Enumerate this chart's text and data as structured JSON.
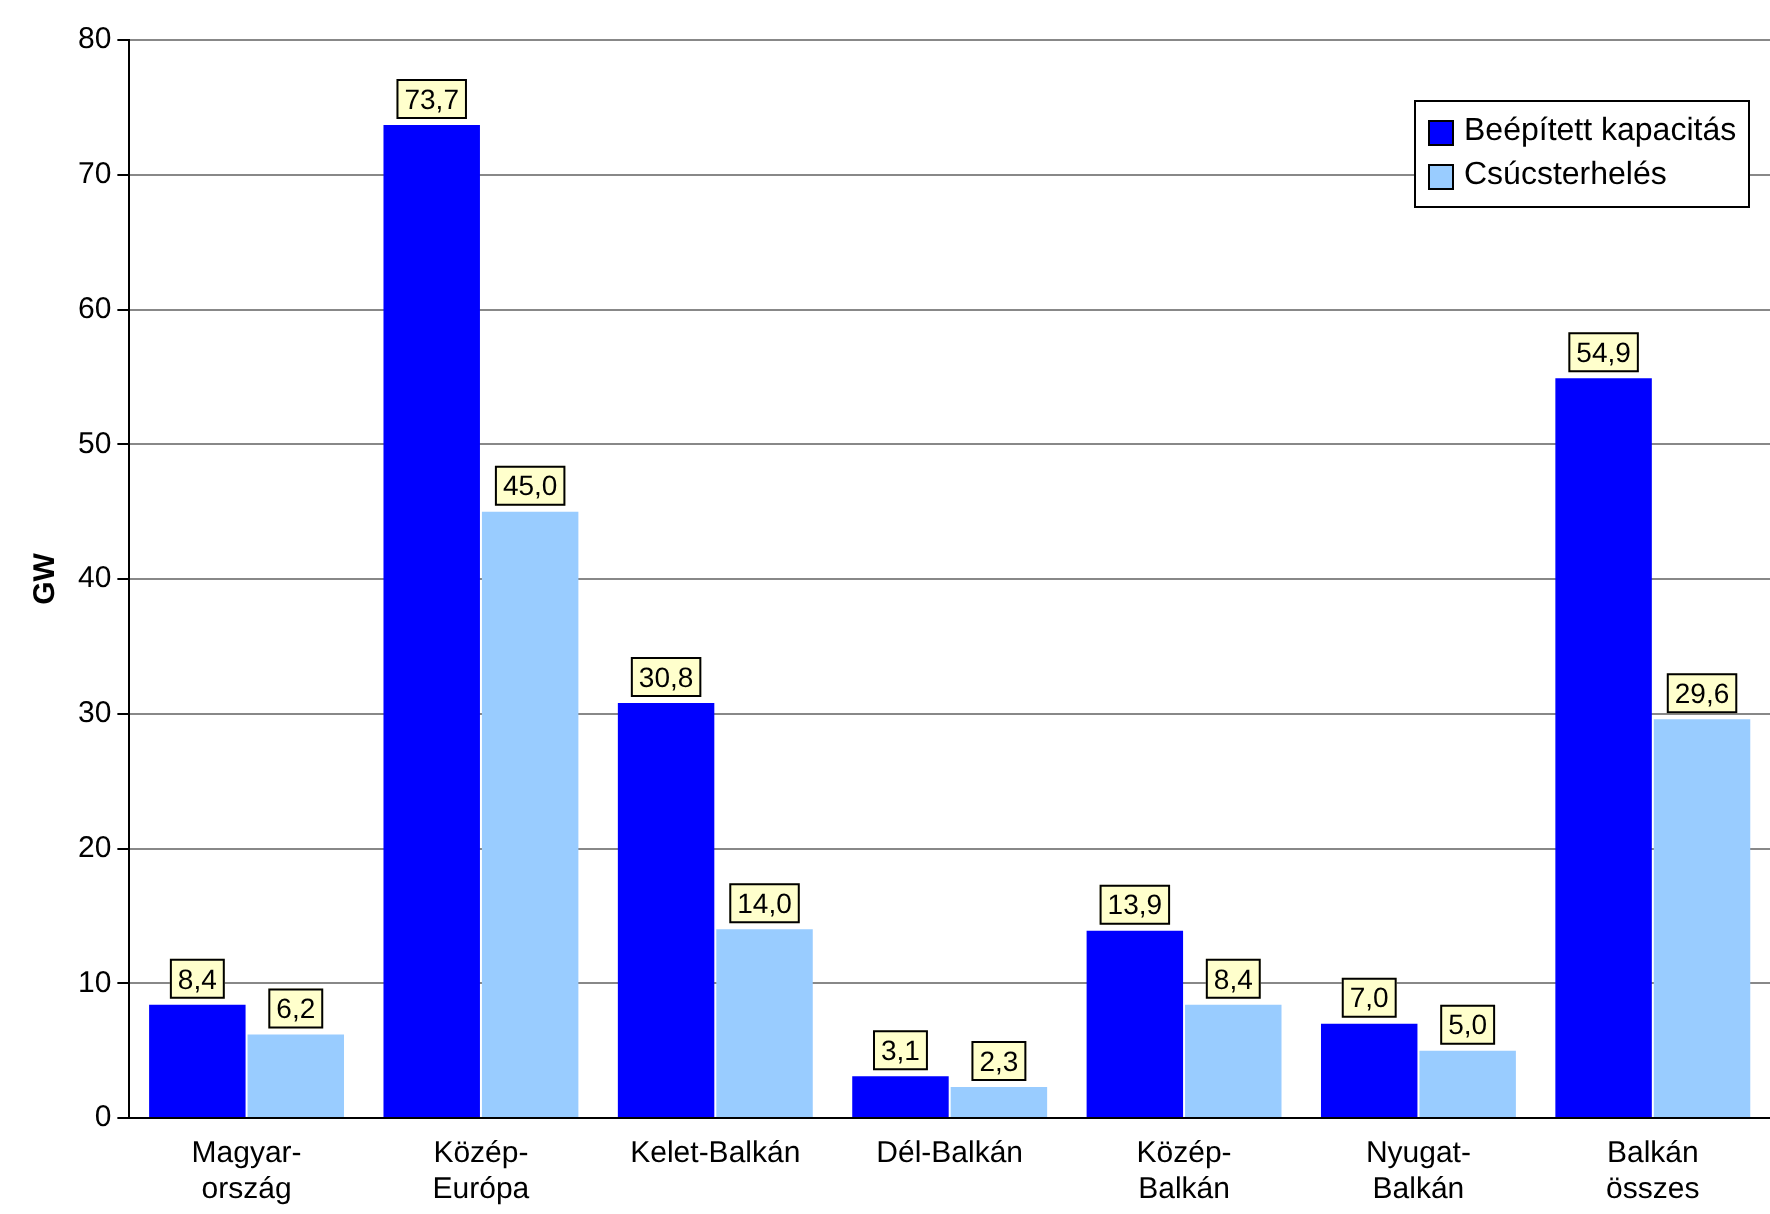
{
  "chart_data": {
    "type": "bar",
    "ylabel": "GW",
    "categories": [
      "Magyar-\nország",
      "Közép-\nEurópa",
      "Kelet-Balkán",
      "Dél-Balkán",
      "Közép-\nBalkán",
      "Nyugat-\nBalkán",
      "Balkán\nösszes"
    ],
    "series": [
      {
        "name": "Beépített kapacitás",
        "color": "#0000ff",
        "values": [
          8.4,
          73.7,
          30.8,
          3.1,
          13.9,
          7.0,
          54.9
        ],
        "value_labels": [
          "8,4",
          "73,7",
          "30,8",
          "3,1",
          "13,9",
          "7,0",
          "54,9"
        ]
      },
      {
        "name": "Csúcsterhelés",
        "color": "#99ccff",
        "values": [
          6.2,
          45.0,
          14.0,
          2.3,
          8.4,
          5.0,
          29.6
        ],
        "value_labels": [
          "6,2",
          "45,0",
          "14,0",
          "2,3",
          "8,4",
          "5,0",
          "29,6"
        ]
      }
    ],
    "ylim": [
      0,
      80
    ],
    "yticks": [
      0,
      10,
      20,
      30,
      40,
      50,
      60,
      70,
      80
    ],
    "grid": "y",
    "legend": "top right"
  }
}
